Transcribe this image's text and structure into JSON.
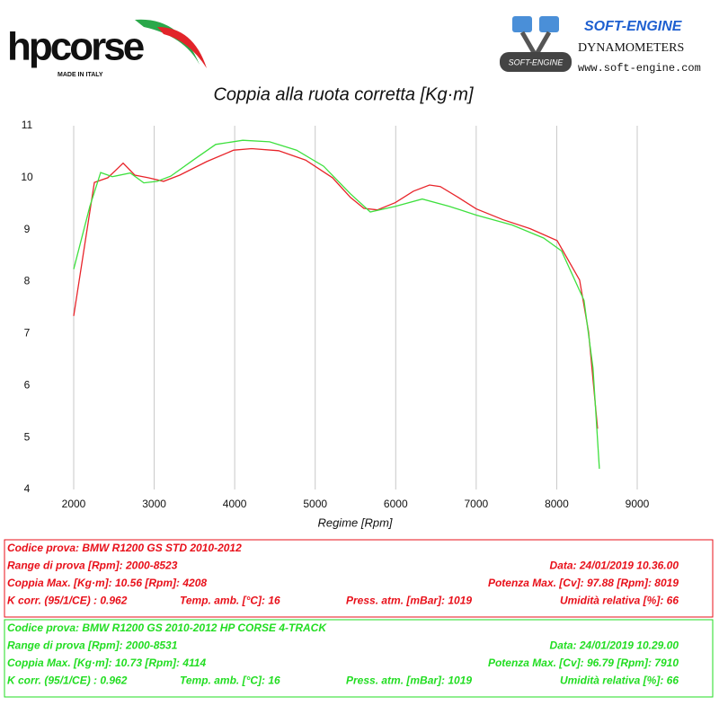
{
  "header": {
    "brand": "hpcorse",
    "brand_tagline": "MADE IN ITALY",
    "dyno_brand": "SOFT-ENGINE",
    "dyno_logo_text": "SOFT-ENGINE",
    "dyno_subtitle": "DYNAMOMETERS",
    "dyno_url": "www.soft-engine.com"
  },
  "chart_data": {
    "type": "line",
    "title": "Coppia alla ruota corretta [Kg·m]",
    "x_label": "Regime [Rpm]",
    "xlim": [
      2000,
      9000
    ],
    "ylim": [
      4,
      11
    ],
    "xticks": [
      2000,
      3000,
      4000,
      5000,
      6000,
      7000,
      8000,
      9000
    ],
    "yticks": [
      4,
      5,
      6,
      7,
      8,
      9,
      10,
      11
    ],
    "grid": "x",
    "series": [
      {
        "name": "BMW R1200 GS STD",
        "color": "#e8242a",
        "x": [
          2000,
          2257,
          2424,
          2614,
          2759,
          2926,
          3116,
          3317,
          3652,
          3987,
          4210,
          4545,
          4880,
          5215,
          5438,
          5605,
          5772,
          5996,
          6219,
          6420,
          6554,
          6777,
          7000,
          7335,
          7670,
          8005,
          8284,
          8396,
          8508
        ],
        "values": [
          7.34,
          9.91,
          10.0,
          10.28,
          10.05,
          10.0,
          9.93,
          10.05,
          10.31,
          10.53,
          10.56,
          10.52,
          10.34,
          10.0,
          9.62,
          9.41,
          9.38,
          9.52,
          9.74,
          9.86,
          9.83,
          9.62,
          9.4,
          9.19,
          9.02,
          8.79,
          8.03,
          7.03,
          5.17
        ]
      },
      {
        "name": "BMW R1200 GS HP CORSE 4-TRACK",
        "color": "#3ee03e",
        "x": [
          2000,
          2201,
          2335,
          2480,
          2703,
          2871,
          3038,
          3206,
          3485,
          3764,
          4100,
          4434,
          4769,
          5105,
          5438,
          5684,
          5996,
          6330,
          6665,
          7000,
          7446,
          7837,
          8060,
          8339,
          8451,
          8530
        ],
        "values": [
          8.24,
          9.45,
          10.1,
          10.02,
          10.09,
          9.9,
          9.93,
          10.03,
          10.34,
          10.64,
          10.72,
          10.69,
          10.53,
          10.22,
          9.69,
          9.34,
          9.45,
          9.59,
          9.45,
          9.28,
          9.09,
          8.84,
          8.59,
          7.64,
          6.34,
          4.4
        ]
      }
    ]
  },
  "tests": [
    {
      "color": "#e8101a",
      "code": "Codice prova: BMW R1200 GS STD   2010-2012",
      "range": "Range di prova [Rpm]: 2000-8523",
      "date": "Data: 24/01/2019  10.36.00",
      "torque": "Coppia Max. [Kg·m]: 10.56  [Rpm]: 4208",
      "power": "Potenza Max. [Cv]: 97.88  [Rpm]: 8019",
      "kcorr": "K corr. (95/1/CE) : 0.962",
      "temp": "Temp. amb. [°C]: 16",
      "press": "Press. atm. [mBar]: 1019",
      "humidity": "Umidità relativa [%]: 66"
    },
    {
      "color": "#22dd22",
      "code": "Codice prova: BMW R1200 GS  2010-2012 HP CORSE 4-TRACK",
      "range": "Range di prova [Rpm]: 2000-8531",
      "date": "Data: 24/01/2019  10.29.00",
      "torque": "Coppia Max. [Kg·m]: 10.73  [Rpm]: 4114",
      "power": "Potenza Max. [Cv]: 96.79  [Rpm]: 7910",
      "kcorr": "K corr. (95/1/CE) : 0.962",
      "temp": "Temp. amb. [°C]: 16",
      "press": "Press. atm. [mBar]: 1019",
      "humidity": "Umidità relativa [%]: 66"
    }
  ]
}
